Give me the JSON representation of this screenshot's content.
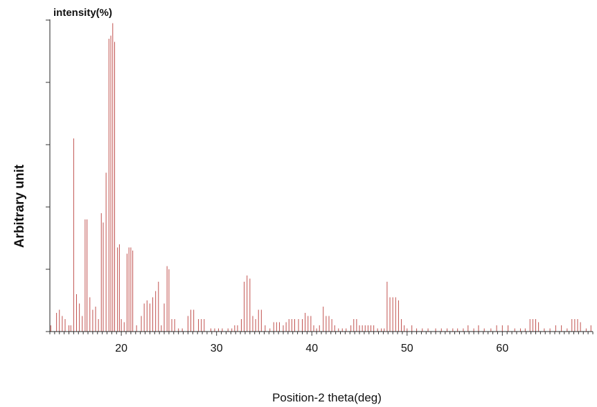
{
  "chart_data": {
    "type": "bar",
    "title": "intensity(%)",
    "xlabel": "Position-2 theta(deg)",
    "ylabel": "Arbitrary unit",
    "xlim": [
      12.5,
      69.5
    ],
    "ylim": [
      0,
      100
    ],
    "xticks": [
      20,
      30,
      40,
      50,
      60
    ],
    "yticks": [
      0,
      20,
      40,
      60,
      80,
      100
    ],
    "grid": false,
    "legend": "none",
    "bar_color": "#c0504d",
    "peaks": [
      {
        "x": 12.6,
        "y": 2
      },
      {
        "x": 13.2,
        "y": 6
      },
      {
        "x": 13.5,
        "y": 7
      },
      {
        "x": 13.8,
        "y": 5
      },
      {
        "x": 14.1,
        "y": 4
      },
      {
        "x": 14.5,
        "y": 2
      },
      {
        "x": 14.7,
        "y": 2
      },
      {
        "x": 15.0,
        "y": 62
      },
      {
        "x": 15.3,
        "y": 12
      },
      {
        "x": 15.6,
        "y": 9
      },
      {
        "x": 15.9,
        "y": 5
      },
      {
        "x": 16.2,
        "y": 36
      },
      {
        "x": 16.4,
        "y": 36
      },
      {
        "x": 16.7,
        "y": 11
      },
      {
        "x": 17.0,
        "y": 7
      },
      {
        "x": 17.3,
        "y": 8
      },
      {
        "x": 17.6,
        "y": 4
      },
      {
        "x": 17.9,
        "y": 38
      },
      {
        "x": 18.1,
        "y": 35
      },
      {
        "x": 18.4,
        "y": 51
      },
      {
        "x": 18.7,
        "y": 94
      },
      {
        "x": 18.9,
        "y": 95
      },
      {
        "x": 19.1,
        "y": 99
      },
      {
        "x": 19.3,
        "y": 93
      },
      {
        "x": 19.6,
        "y": 27
      },
      {
        "x": 19.8,
        "y": 28
      },
      {
        "x": 20.0,
        "y": 4
      },
      {
        "x": 20.3,
        "y": 3
      },
      {
        "x": 20.6,
        "y": 25
      },
      {
        "x": 20.8,
        "y": 27
      },
      {
        "x": 21.0,
        "y": 27
      },
      {
        "x": 21.2,
        "y": 26
      },
      {
        "x": 21.6,
        "y": 2
      },
      {
        "x": 22.1,
        "y": 5
      },
      {
        "x": 22.4,
        "y": 9
      },
      {
        "x": 22.7,
        "y": 10
      },
      {
        "x": 23.0,
        "y": 9
      },
      {
        "x": 23.3,
        "y": 11
      },
      {
        "x": 23.6,
        "y": 13
      },
      {
        "x": 23.9,
        "y": 16
      },
      {
        "x": 24.2,
        "y": 2
      },
      {
        "x": 24.5,
        "y": 9
      },
      {
        "x": 24.8,
        "y": 21
      },
      {
        "x": 25.0,
        "y": 20
      },
      {
        "x": 25.3,
        "y": 4
      },
      {
        "x": 25.6,
        "y": 4
      },
      {
        "x": 26.0,
        "y": 1
      },
      {
        "x": 26.4,
        "y": 1
      },
      {
        "x": 27.0,
        "y": 5
      },
      {
        "x": 27.3,
        "y": 7
      },
      {
        "x": 27.6,
        "y": 7
      },
      {
        "x": 28.1,
        "y": 4
      },
      {
        "x": 28.4,
        "y": 4
      },
      {
        "x": 28.7,
        "y": 4
      },
      {
        "x": 29.4,
        "y": 1
      },
      {
        "x": 29.8,
        "y": 1
      },
      {
        "x": 30.2,
        "y": 1
      },
      {
        "x": 30.6,
        "y": 1
      },
      {
        "x": 31.2,
        "y": 1
      },
      {
        "x": 31.6,
        "y": 1
      },
      {
        "x": 31.9,
        "y": 2
      },
      {
        "x": 32.2,
        "y": 2
      },
      {
        "x": 32.6,
        "y": 4
      },
      {
        "x": 32.9,
        "y": 16
      },
      {
        "x": 33.2,
        "y": 18
      },
      {
        "x": 33.5,
        "y": 17
      },
      {
        "x": 33.8,
        "y": 5
      },
      {
        "x": 34.1,
        "y": 4
      },
      {
        "x": 34.4,
        "y": 7
      },
      {
        "x": 34.7,
        "y": 7
      },
      {
        "x": 35.1,
        "y": 2
      },
      {
        "x": 35.6,
        "y": 1
      },
      {
        "x": 36.0,
        "y": 3
      },
      {
        "x": 36.3,
        "y": 3
      },
      {
        "x": 36.6,
        "y": 3
      },
      {
        "x": 37.0,
        "y": 2
      },
      {
        "x": 37.3,
        "y": 3
      },
      {
        "x": 37.6,
        "y": 4
      },
      {
        "x": 37.9,
        "y": 4
      },
      {
        "x": 38.2,
        "y": 4
      },
      {
        "x": 38.6,
        "y": 4
      },
      {
        "x": 39.0,
        "y": 4
      },
      {
        "x": 39.3,
        "y": 6
      },
      {
        "x": 39.6,
        "y": 5
      },
      {
        "x": 39.9,
        "y": 5
      },
      {
        "x": 40.2,
        "y": 2
      },
      {
        "x": 40.5,
        "y": 1
      },
      {
        "x": 40.8,
        "y": 2
      },
      {
        "x": 41.2,
        "y": 8
      },
      {
        "x": 41.5,
        "y": 5
      },
      {
        "x": 41.8,
        "y": 5
      },
      {
        "x": 42.1,
        "y": 4
      },
      {
        "x": 42.4,
        "y": 2
      },
      {
        "x": 42.8,
        "y": 1
      },
      {
        "x": 43.2,
        "y": 1
      },
      {
        "x": 43.6,
        "y": 1
      },
      {
        "x": 44.1,
        "y": 2
      },
      {
        "x": 44.4,
        "y": 4
      },
      {
        "x": 44.7,
        "y": 4
      },
      {
        "x": 45.0,
        "y": 2
      },
      {
        "x": 45.3,
        "y": 2
      },
      {
        "x": 45.6,
        "y": 2
      },
      {
        "x": 45.9,
        "y": 2
      },
      {
        "x": 46.2,
        "y": 2
      },
      {
        "x": 46.5,
        "y": 2
      },
      {
        "x": 46.9,
        "y": 1
      },
      {
        "x": 47.3,
        "y": 1
      },
      {
        "x": 47.6,
        "y": 1
      },
      {
        "x": 47.9,
        "y": 16
      },
      {
        "x": 48.2,
        "y": 11
      },
      {
        "x": 48.5,
        "y": 11
      },
      {
        "x": 48.8,
        "y": 11
      },
      {
        "x": 49.1,
        "y": 10
      },
      {
        "x": 49.4,
        "y": 4
      },
      {
        "x": 49.7,
        "y": 2
      },
      {
        "x": 50.0,
        "y": 1
      },
      {
        "x": 50.5,
        "y": 2
      },
      {
        "x": 51.0,
        "y": 1
      },
      {
        "x": 51.6,
        "y": 1
      },
      {
        "x": 52.2,
        "y": 1
      },
      {
        "x": 53.0,
        "y": 1
      },
      {
        "x": 53.6,
        "y": 1
      },
      {
        "x": 54.2,
        "y": 1
      },
      {
        "x": 54.8,
        "y": 1
      },
      {
        "x": 55.3,
        "y": 1
      },
      {
        "x": 55.9,
        "y": 1
      },
      {
        "x": 56.4,
        "y": 2
      },
      {
        "x": 57.0,
        "y": 1
      },
      {
        "x": 57.5,
        "y": 2
      },
      {
        "x": 58.1,
        "y": 1
      },
      {
        "x": 58.8,
        "y": 1
      },
      {
        "x": 59.4,
        "y": 2
      },
      {
        "x": 60.0,
        "y": 2
      },
      {
        "x": 60.6,
        "y": 2
      },
      {
        "x": 61.3,
        "y": 1
      },
      {
        "x": 61.9,
        "y": 1
      },
      {
        "x": 62.4,
        "y": 1
      },
      {
        "x": 62.9,
        "y": 4
      },
      {
        "x": 63.2,
        "y": 4
      },
      {
        "x": 63.5,
        "y": 4
      },
      {
        "x": 63.8,
        "y": 3
      },
      {
        "x": 64.4,
        "y": 1
      },
      {
        "x": 65.0,
        "y": 1
      },
      {
        "x": 65.6,
        "y": 2
      },
      {
        "x": 66.2,
        "y": 2
      },
      {
        "x": 66.8,
        "y": 1
      },
      {
        "x": 67.3,
        "y": 4
      },
      {
        "x": 67.6,
        "y": 4
      },
      {
        "x": 67.9,
        "y": 4
      },
      {
        "x": 68.2,
        "y": 3
      },
      {
        "x": 68.8,
        "y": 1
      },
      {
        "x": 69.3,
        "y": 2
      }
    ]
  }
}
